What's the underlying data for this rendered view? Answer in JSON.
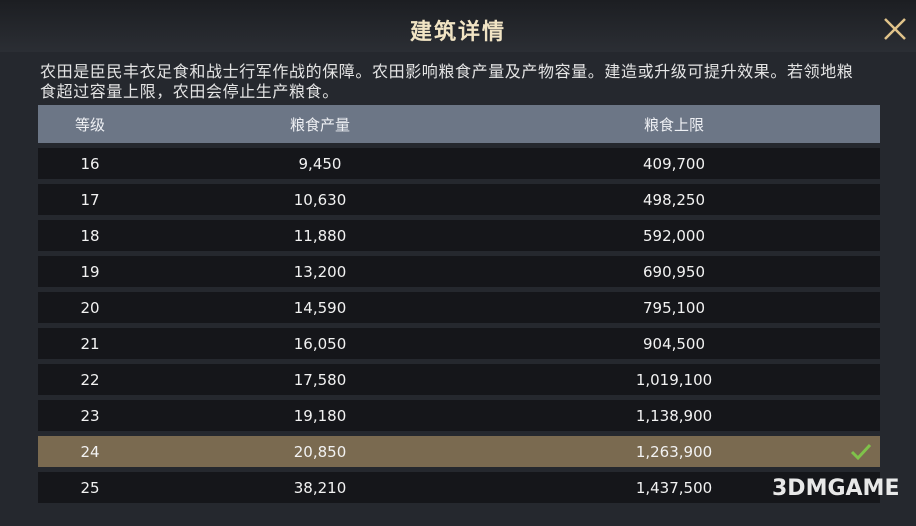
{
  "header": {
    "title": "建筑详情"
  },
  "description": "农田是臣民丰衣足食和战士行军作战的保障。农田影响粮食产量及产物容量。建造或升级可提升效果。若领地粮食超过容量上限，农田会停止生产粮食。",
  "table": {
    "columns": [
      "等级",
      "粮食产量",
      "粮食上限"
    ],
    "rows": [
      [
        "16",
        "9,450",
        "409,700"
      ],
      [
        "17",
        "10,630",
        "498,250"
      ],
      [
        "18",
        "11,880",
        "592,000"
      ],
      [
        "19",
        "13,200",
        "690,950"
      ],
      [
        "20",
        "14,590",
        "795,100"
      ],
      [
        "21",
        "16,050",
        "904,500"
      ],
      [
        "22",
        "17,580",
        "1,019,100"
      ],
      [
        "23",
        "19,180",
        "1,138,900"
      ],
      [
        "24",
        "20,850",
        "1,263,900"
      ],
      [
        "25",
        "38,210",
        "1,437,500"
      ]
    ],
    "current_row": 8
  },
  "watermark": {
    "text": "3DMGAME"
  }
}
